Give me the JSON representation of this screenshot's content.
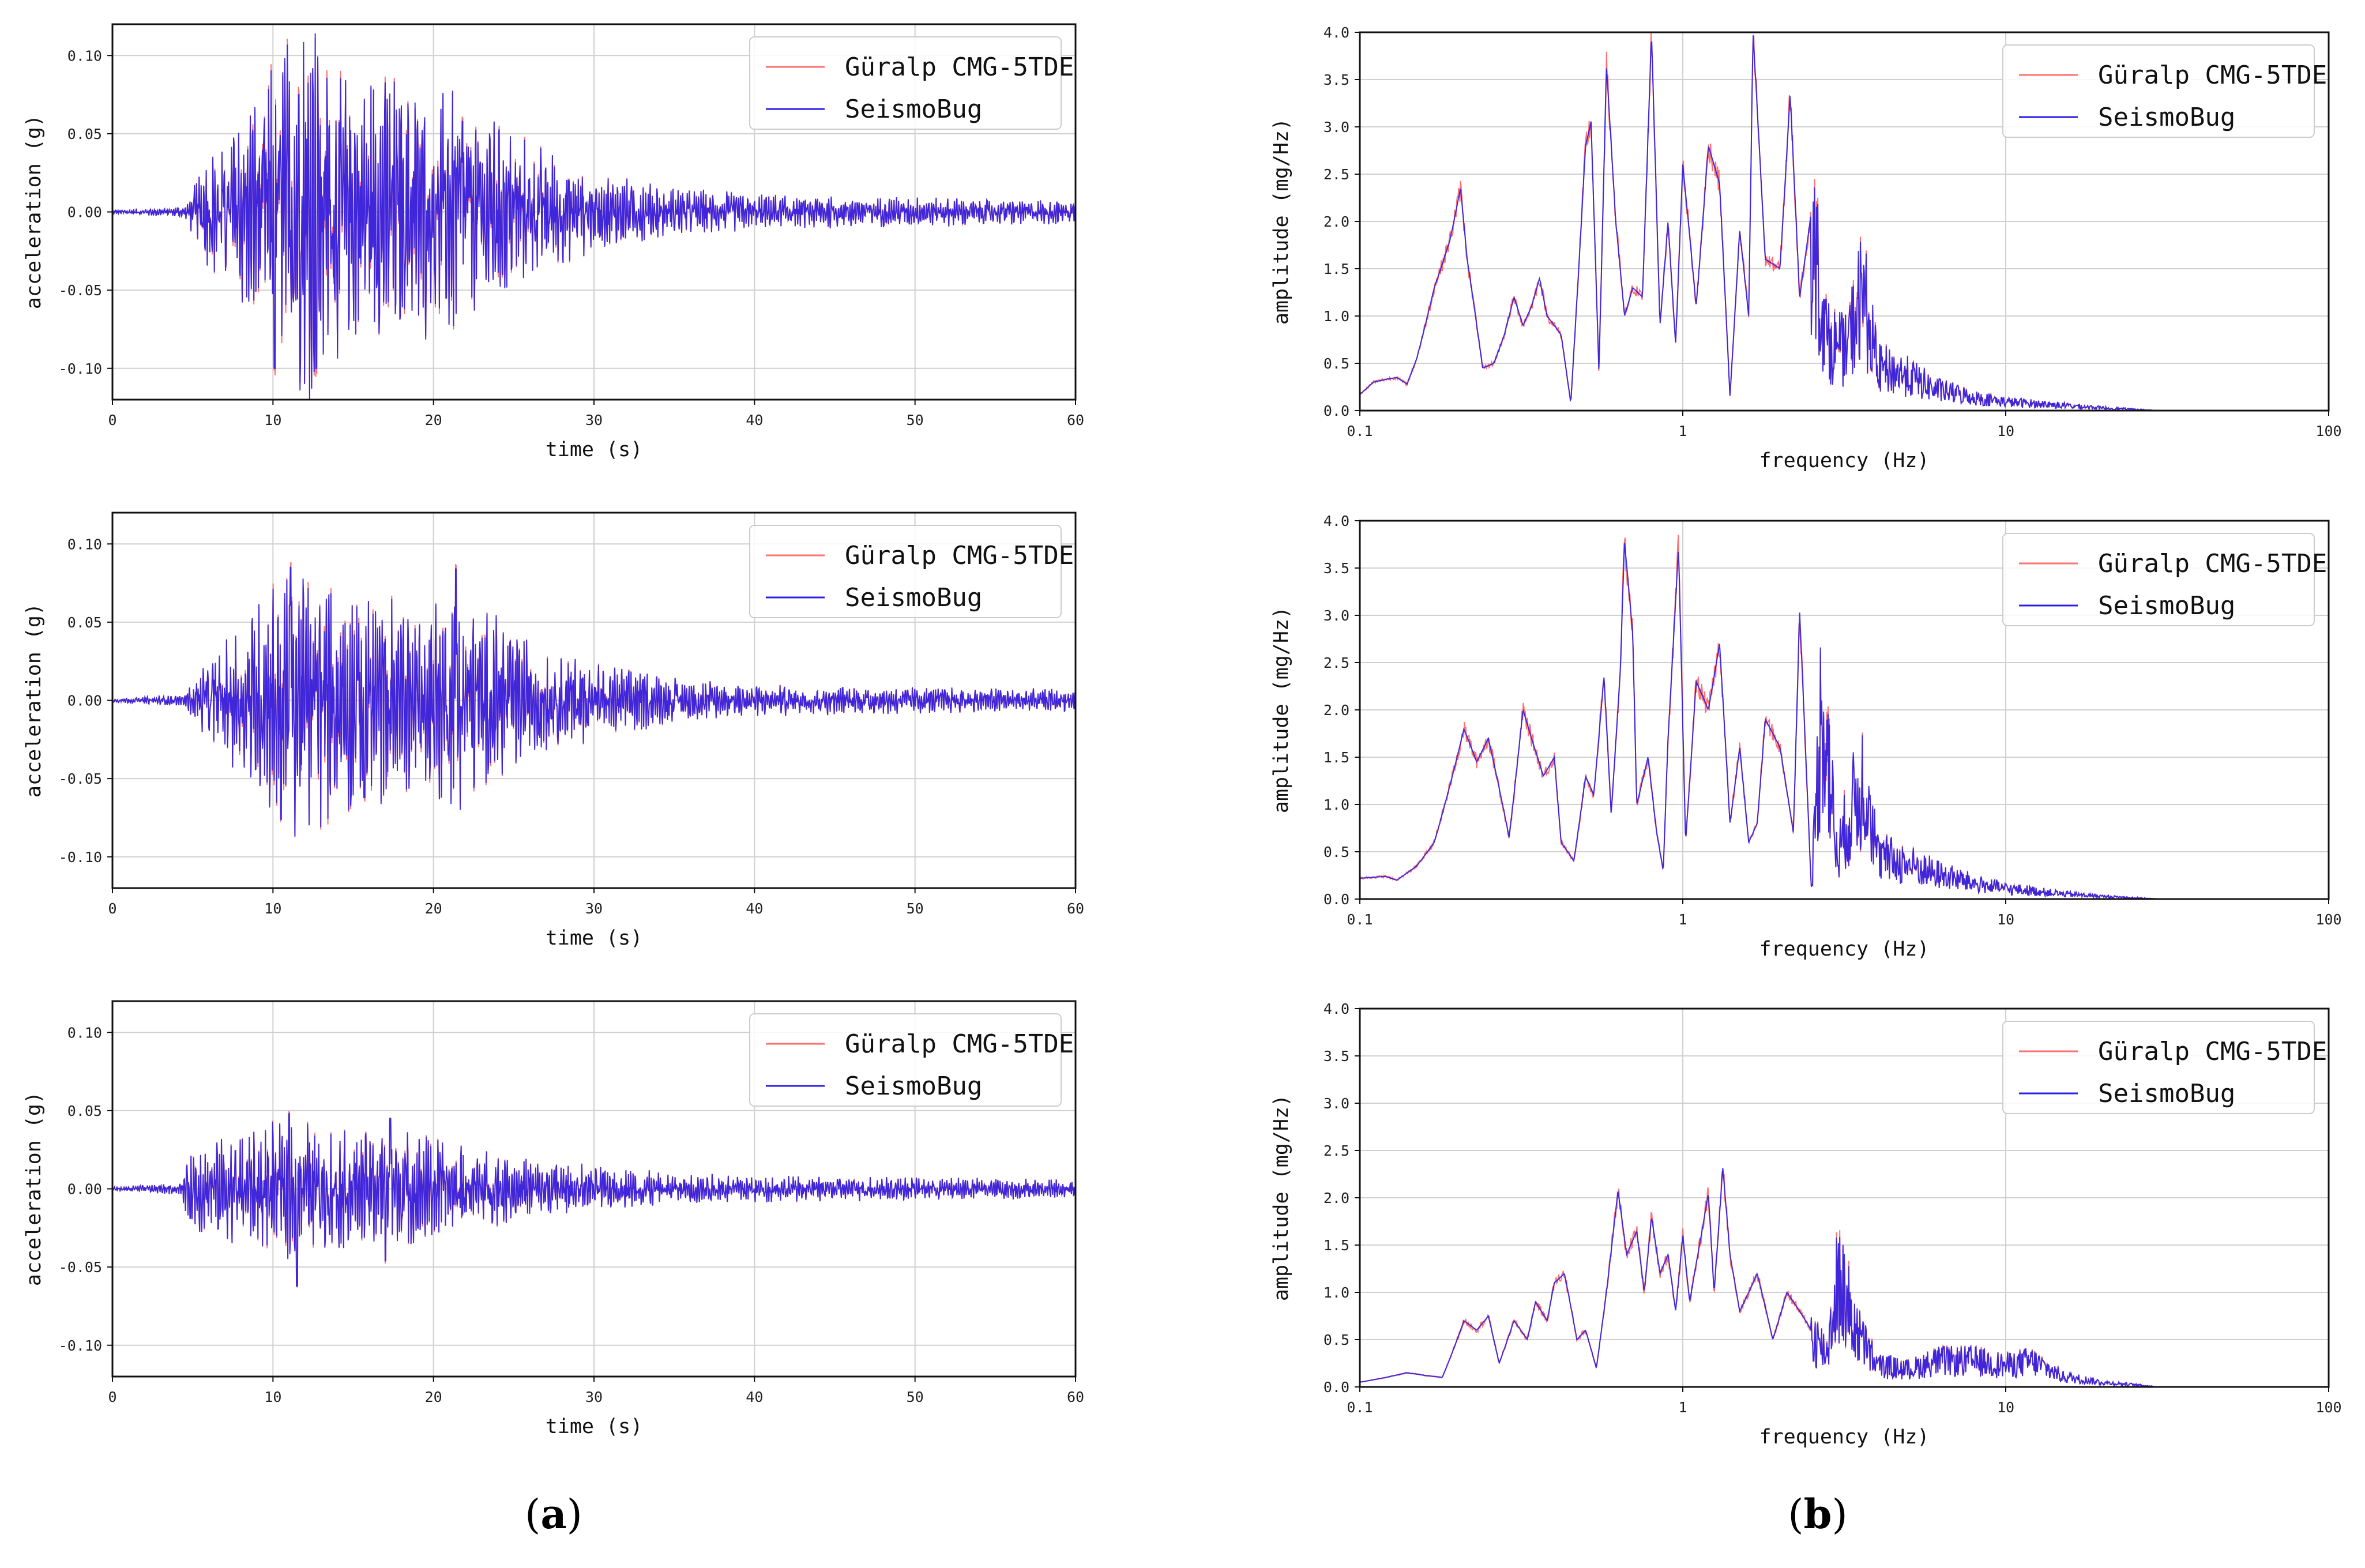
{
  "series_names": [
    "Güralp CMG-5TDE",
    "SeismoBug"
  ],
  "series_colors": [
    "#ff7070",
    "#2a1ee6"
  ],
  "captions": {
    "a": "a",
    "b": "b"
  },
  "chart_data": [
    {
      "id": "a1",
      "type": "line",
      "title": "",
      "xlabel": "time (s)",
      "ylabel": "acceleration (g)",
      "xscale": "linear",
      "xlim": [
        0,
        60
      ],
      "ylim": [
        -0.12,
        0.12
      ],
      "xticks": [
        0,
        10,
        20,
        30,
        40,
        50,
        60
      ],
      "xticklabels": [
        "0",
        "10",
        "20",
        "30",
        "40",
        "50",
        "60"
      ],
      "yticks": [
        -0.1,
        -0.05,
        0,
        0.05,
        0.1
      ],
      "yticklabels": [
        "-0.10",
        "-0.05",
        "0.00",
        "0.05",
        "0.10"
      ],
      "legend": "top-right",
      "grid": true,
      "series": [
        "Güralp CMG-5TDE",
        "SeismoBug"
      ],
      "envelope": [
        [
          0,
          0.001
        ],
        [
          4.5,
          0.003
        ],
        [
          6,
          0.03
        ],
        [
          9,
          0.06
        ],
        [
          10.5,
          0.09
        ],
        [
          12.5,
          0.1
        ],
        [
          15,
          0.07
        ],
        [
          20,
          0.065
        ],
        [
          22,
          0.06
        ],
        [
          26,
          0.035
        ],
        [
          30,
          0.02
        ],
        [
          35,
          0.013
        ],
        [
          40,
          0.009
        ],
        [
          60,
          0.006
        ]
      ],
      "peaks": [
        [
          10.1,
          -0.1
        ],
        [
          11.6,
          0.075
        ],
        [
          12.7,
          -0.1
        ],
        [
          21.8,
          0.058
        ],
        [
          20.8,
          -0.055
        ]
      ]
    },
    {
      "id": "a2",
      "type": "line",
      "title": "",
      "xlabel": "time (s)",
      "ylabel": "acceleration (g)",
      "xscale": "linear",
      "xlim": [
        0,
        60
      ],
      "ylim": [
        -0.12,
        0.12
      ],
      "xticks": [
        0,
        10,
        20,
        30,
        40,
        50,
        60
      ],
      "xticklabels": [
        "0",
        "10",
        "20",
        "30",
        "40",
        "50",
        "60"
      ],
      "yticks": [
        -0.1,
        -0.05,
        0,
        0.05,
        0.1
      ],
      "yticklabels": [
        "-0.10",
        "-0.05",
        "0.00",
        "0.05",
        "0.10"
      ],
      "legend": "top-right",
      "grid": true,
      "series": [
        "Güralp CMG-5TDE",
        "SeismoBug"
      ],
      "envelope": [
        [
          0,
          0.001
        ],
        [
          4.5,
          0.003
        ],
        [
          6,
          0.022
        ],
        [
          9,
          0.05
        ],
        [
          11,
          0.075
        ],
        [
          14,
          0.06
        ],
        [
          19,
          0.05
        ],
        [
          22,
          0.055
        ],
        [
          26,
          0.03
        ],
        [
          30,
          0.02
        ],
        [
          35,
          0.012
        ],
        [
          40,
          0.008
        ],
        [
          60,
          0.006
        ]
      ],
      "peaks": [
        [
          10.5,
          -0.076
        ],
        [
          11.1,
          0.085
        ],
        [
          21.4,
          0.084
        ],
        [
          15.7,
          -0.062
        ]
      ]
    },
    {
      "id": "a3",
      "type": "line",
      "title": "",
      "xlabel": "time (s)",
      "ylabel": "acceleration (g)",
      "xscale": "linear",
      "xlim": [
        0,
        60
      ],
      "ylim": [
        -0.12,
        0.12
      ],
      "xticks": [
        0,
        10,
        20,
        30,
        40,
        50,
        60
      ],
      "xticklabels": [
        "0",
        "10",
        "20",
        "30",
        "40",
        "50",
        "60"
      ],
      "yticks": [
        -0.1,
        -0.05,
        0,
        0.05,
        0.1
      ],
      "yticklabels": [
        "-0.10",
        "-0.05",
        "0.00",
        "0.05",
        "0.10"
      ],
      "legend": "top-right",
      "grid": true,
      "series": [
        "Güralp CMG-5TDE",
        "SeismoBug"
      ],
      "envelope": [
        [
          0,
          0.001
        ],
        [
          4.2,
          0.003
        ],
        [
          5,
          0.022
        ],
        [
          8,
          0.028
        ],
        [
          11,
          0.038
        ],
        [
          14,
          0.03
        ],
        [
          18,
          0.03
        ],
        [
          22,
          0.022
        ],
        [
          26,
          0.015
        ],
        [
          30,
          0.012
        ],
        [
          35,
          0.008
        ],
        [
          40,
          0.007
        ],
        [
          60,
          0.005
        ]
      ],
      "peaks": [
        [
          11.0,
          0.048
        ],
        [
          11.5,
          -0.062
        ],
        [
          17.3,
          0.045
        ],
        [
          17.0,
          -0.046
        ]
      ]
    },
    {
      "id": "b1",
      "type": "line",
      "title": "",
      "xlabel": "frequency (Hz)",
      "ylabel": "amplitude (mg/Hz)",
      "xscale": "log",
      "xlim": [
        0.1,
        100
      ],
      "ylim": [
        0,
        4
      ],
      "xticks": [
        0.1,
        1,
        10,
        100
      ],
      "xticklabels": [
        "0.1",
        "1",
        "10",
        "100"
      ],
      "yticks": [
        0,
        0.5,
        1,
        1.5,
        2,
        2.5,
        3,
        3.5,
        4
      ],
      "yticklabels": [
        "0.0",
        "0.5",
        "1.0",
        "1.5",
        "2.0",
        "2.5",
        "3.0",
        "3.5",
        "4.0"
      ],
      "legend": "top-right",
      "grid": true,
      "series": [
        "Güralp CMG-5TDE",
        "SeismoBug"
      ],
      "spectrum": [
        [
          0.1,
          0.17
        ],
        [
          0.11,
          0.3
        ],
        [
          0.12,
          0.33
        ],
        [
          0.13,
          0.35
        ],
        [
          0.14,
          0.28
        ],
        [
          0.15,
          0.55
        ],
        [
          0.17,
          1.3
        ],
        [
          0.19,
          1.8
        ],
        [
          0.205,
          2.35
        ],
        [
          0.215,
          1.6
        ],
        [
          0.24,
          0.45
        ],
        [
          0.26,
          0.5
        ],
        [
          0.28,
          0.8
        ],
        [
          0.3,
          1.2
        ],
        [
          0.32,
          0.9
        ],
        [
          0.34,
          1.1
        ],
        [
          0.36,
          1.4
        ],
        [
          0.38,
          1.0
        ],
        [
          0.4,
          0.9
        ],
        [
          0.42,
          0.8
        ],
        [
          0.45,
          0.08
        ],
        [
          0.5,
          2.8
        ],
        [
          0.52,
          3.05
        ],
        [
          0.55,
          0.4
        ],
        [
          0.58,
          3.65
        ],
        [
          0.62,
          2.0
        ],
        [
          0.66,
          1.0
        ],
        [
          0.7,
          1.3
        ],
        [
          0.75,
          1.2
        ],
        [
          0.8,
          4.0
        ],
        [
          0.85,
          0.9
        ],
        [
          0.9,
          2.0
        ],
        [
          0.95,
          0.7
        ],
        [
          1.0,
          2.6
        ],
        [
          1.1,
          1.1
        ],
        [
          1.2,
          2.8
        ],
        [
          1.3,
          2.4
        ],
        [
          1.4,
          0.15
        ],
        [
          1.5,
          1.9
        ],
        [
          1.6,
          1.0
        ],
        [
          1.65,
          4.0
        ],
        [
          1.8,
          1.6
        ],
        [
          2.0,
          1.5
        ],
        [
          2.15,
          3.35
        ],
        [
          2.3,
          1.2
        ],
        [
          2.5,
          2.1
        ],
        [
          2.8,
          0.8
        ],
        [
          3.2,
          0.7
        ],
        [
          3.6,
          1.4
        ],
        [
          4,
          0.5
        ],
        [
          5,
          0.4
        ],
        [
          6,
          0.25
        ],
        [
          8,
          0.15
        ],
        [
          10,
          0.1
        ],
        [
          15,
          0.06
        ],
        [
          20,
          0.03
        ],
        [
          30,
          0.0
        ],
        [
          100,
          0.0
        ]
      ]
    },
    {
      "id": "b2",
      "type": "line",
      "title": "",
      "xlabel": "frequency (Hz)",
      "ylabel": "amplitude (mg/Hz)",
      "xscale": "log",
      "xlim": [
        0.1,
        100
      ],
      "ylim": [
        0,
        4
      ],
      "xticks": [
        0.1,
        1,
        10,
        100
      ],
      "xticklabels": [
        "0.1",
        "1",
        "10",
        "100"
      ],
      "yticks": [
        0,
        0.5,
        1,
        1.5,
        2,
        2.5,
        3,
        3.5,
        4
      ],
      "yticklabels": [
        "0.0",
        "0.5",
        "1.0",
        "1.5",
        "2.0",
        "2.5",
        "3.0",
        "3.5",
        "4.0"
      ],
      "legend": "top-right",
      "grid": true,
      "series": [
        "Güralp CMG-5TDE",
        "SeismoBug"
      ],
      "spectrum": [
        [
          0.1,
          0.22
        ],
        [
          0.12,
          0.24
        ],
        [
          0.13,
          0.2
        ],
        [
          0.15,
          0.35
        ],
        [
          0.17,
          0.6
        ],
        [
          0.19,
          1.2
        ],
        [
          0.21,
          1.8
        ],
        [
          0.23,
          1.45
        ],
        [
          0.25,
          1.7
        ],
        [
          0.29,
          0.65
        ],
        [
          0.32,
          2.0
        ],
        [
          0.34,
          1.7
        ],
        [
          0.37,
          1.3
        ],
        [
          0.4,
          1.5
        ],
        [
          0.42,
          0.6
        ],
        [
          0.46,
          0.4
        ],
        [
          0.5,
          1.3
        ],
        [
          0.53,
          1.1
        ],
        [
          0.57,
          2.35
        ],
        [
          0.6,
          0.9
        ],
        [
          0.64,
          2.4
        ],
        [
          0.66,
          3.78
        ],
        [
          0.7,
          2.8
        ],
        [
          0.72,
          1.0
        ],
        [
          0.78,
          1.5
        ],
        [
          0.83,
          0.7
        ],
        [
          0.87,
          0.3
        ],
        [
          0.9,
          1.7
        ],
        [
          0.97,
          3.72
        ],
        [
          1.02,
          0.6
        ],
        [
          1.1,
          2.3
        ],
        [
          1.2,
          2.0
        ],
        [
          1.3,
          2.7
        ],
        [
          1.4,
          0.8
        ],
        [
          1.5,
          1.6
        ],
        [
          1.6,
          0.6
        ],
        [
          1.7,
          0.8
        ],
        [
          1.8,
          1.9
        ],
        [
          2.0,
          1.6
        ],
        [
          2.2,
          0.7
        ],
        [
          2.3,
          3.05
        ],
        [
          2.5,
          0.1
        ],
        [
          2.7,
          2.4
        ],
        [
          3.0,
          0.5
        ],
        [
          3.3,
          1.0
        ],
        [
          3.7,
          1.45
        ],
        [
          4,
          0.5
        ],
        [
          5,
          0.4
        ],
        [
          6,
          0.3
        ],
        [
          8,
          0.18
        ],
        [
          10,
          0.12
        ],
        [
          15,
          0.06
        ],
        [
          20,
          0.03
        ],
        [
          30,
          0.0
        ],
        [
          100,
          0.0
        ]
      ]
    },
    {
      "id": "b3",
      "type": "line",
      "title": "",
      "xlabel": "frequency (Hz)",
      "ylabel": "amplitude (mg/Hz)",
      "xscale": "log",
      "xlim": [
        0.1,
        100
      ],
      "ylim": [
        0,
        4
      ],
      "xticks": [
        0.1,
        1,
        10,
        100
      ],
      "xticklabels": [
        "0.1",
        "1",
        "10",
        "100"
      ],
      "yticks": [
        0,
        0.5,
        1,
        1.5,
        2,
        2.5,
        3,
        3.5,
        4
      ],
      "yticklabels": [
        "0.0",
        "0.5",
        "1.0",
        "1.5",
        "2.0",
        "2.5",
        "3.0",
        "3.5",
        "4.0"
      ],
      "legend": "top-right",
      "grid": true,
      "series": [
        "Güralp CMG-5TDE",
        "SeismoBug"
      ],
      "spectrum": [
        [
          0.1,
          0.05
        ],
        [
          0.12,
          0.1
        ],
        [
          0.14,
          0.15
        ],
        [
          0.16,
          0.12
        ],
        [
          0.18,
          0.1
        ],
        [
          0.21,
          0.7
        ],
        [
          0.23,
          0.6
        ],
        [
          0.25,
          0.75
        ],
        [
          0.27,
          0.25
        ],
        [
          0.3,
          0.7
        ],
        [
          0.33,
          0.5
        ],
        [
          0.35,
          0.9
        ],
        [
          0.38,
          0.7
        ],
        [
          0.4,
          1.1
        ],
        [
          0.43,
          1.2
        ],
        [
          0.47,
          0.5
        ],
        [
          0.5,
          0.6
        ],
        [
          0.54,
          0.2
        ],
        [
          0.58,
          1.0
        ],
        [
          0.63,
          2.08
        ],
        [
          0.67,
          1.4
        ],
        [
          0.72,
          1.65
        ],
        [
          0.76,
          1.0
        ],
        [
          0.8,
          1.8
        ],
        [
          0.85,
          1.2
        ],
        [
          0.9,
          1.4
        ],
        [
          0.95,
          0.8
        ],
        [
          1.0,
          1.6
        ],
        [
          1.05,
          0.9
        ],
        [
          1.1,
          1.3
        ],
        [
          1.2,
          2.05
        ],
        [
          1.25,
          1.0
        ],
        [
          1.33,
          2.32
        ],
        [
          1.4,
          1.4
        ],
        [
          1.5,
          0.8
        ],
        [
          1.7,
          1.2
        ],
        [
          1.9,
          0.5
        ],
        [
          2.1,
          1.0
        ],
        [
          2.5,
          0.6
        ],
        [
          2.8,
          0.4
        ],
        [
          3.0,
          1.25
        ],
        [
          3.5,
          0.6
        ],
        [
          4,
          0.25
        ],
        [
          5,
          0.2
        ],
        [
          6,
          0.3
        ],
        [
          8,
          0.3
        ],
        [
          10,
          0.25
        ],
        [
          12,
          0.3
        ],
        [
          15,
          0.12
        ],
        [
          20,
          0.05
        ],
        [
          30,
          0.0
        ],
        [
          100,
          0.0
        ]
      ]
    }
  ]
}
